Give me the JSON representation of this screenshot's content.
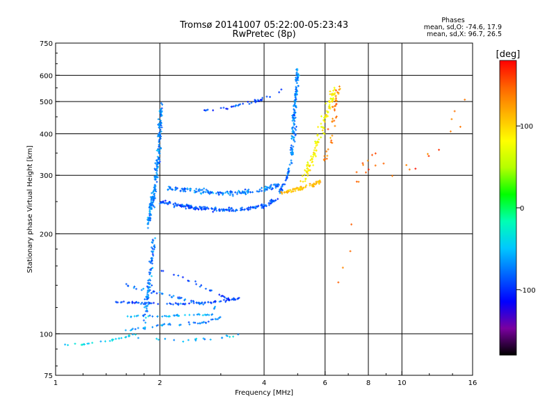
{
  "chart_data": {
    "type": "scatter",
    "title": "Tromsø 20141007 05:22:00-05:23:43",
    "subtitle": "RwPretec (8p)",
    "xlabel": "Frequency [MHz]",
    "ylabel": "Stationary phase Virtual Height [km]",
    "x_scale": "log",
    "y_scale": "log",
    "xlim": [
      1,
      16
    ],
    "ylim": [
      75,
      750
    ],
    "x_ticks": [
      {
        "value": 1,
        "label": "1"
      },
      {
        "value": 2,
        "label": "2"
      },
      {
        "value": 4,
        "label": "4"
      },
      {
        "value": 6,
        "label": "6"
      },
      {
        "value": 8,
        "label": "8"
      },
      {
        "value": 10,
        "label": "10"
      },
      {
        "value": 16,
        "label": "16"
      }
    ],
    "x_gridlines": [
      2,
      4,
      6,
      8,
      10
    ],
    "y_ticks": [
      {
        "value": 75,
        "label": "75"
      },
      {
        "value": 100,
        "label": "100"
      },
      {
        "value": 200,
        "label": "200"
      },
      {
        "value": 300,
        "label": "300"
      },
      {
        "value": 400,
        "label": "400"
      },
      {
        "value": 500,
        "label": "500"
      },
      {
        "value": 600,
        "label": "600"
      },
      {
        "value": 750,
        "label": "750"
      }
    ],
    "y_gridlines": [
      100,
      200,
      300,
      400,
      500,
      600
    ],
    "grid": true,
    "phase_info": {
      "heading": "Phases",
      "line_o": "mean, sd,O:  -74.6, 17.9",
      "line_x": "mean, sd,X:  96.7, 26.5"
    },
    "colorbar": {
      "label": "[deg]",
      "range": [
        -180,
        180
      ],
      "ticks": [
        {
          "value": 100,
          "label": "100"
        },
        {
          "value": 0,
          "label": "0"
        },
        {
          "value": -100,
          "label": "-100"
        }
      ],
      "colormap": [
        "#000000",
        "#7a00a0",
        "#0000ff",
        "#0064ff",
        "#00c8ff",
        "#00ffb4",
        "#00ff00",
        "#b4ff00",
        "#ffff00",
        "#ffb400",
        "#ff6400",
        "#ff0000"
      ]
    },
    "traces": [
      {
        "name": "",
        "kind": "curve",
        "x": [
          1.0,
          1.2,
          1.4,
          1.6,
          1.75
        ],
        "y": [
          92,
          93,
          95,
          98,
          100
        ],
        "n": 28,
        "phase": -45,
        "sx": 0.01,
        "sy": 0.01
      },
      {
        "name": "",
        "kind": "curve",
        "x": [
          1.6,
          1.8,
          2.0,
          2.3,
          2.7,
          3.0
        ],
        "y": [
          103,
          104,
          106,
          107,
          108,
          112
        ],
        "n": 45,
        "phase": -70,
        "sx": 0.015,
        "sy": 0.012
      },
      {
        "name": "",
        "kind": "curve",
        "x": [
          1.7,
          2.0,
          2.4,
          2.8,
          3.4
        ],
        "y": [
          98,
          96,
          96,
          97,
          99
        ],
        "n": 20,
        "phase": -55,
        "sx": 0.02,
        "sy": 0.015
      },
      {
        "name": "",
        "kind": "curve",
        "x": [
          1.5,
          1.7,
          2.0,
          2.4,
          2.8,
          3.1,
          3.4
        ],
        "y": [
          125,
          124,
          123,
          123,
          124,
          126,
          128
        ],
        "n": 80,
        "phase": -90,
        "sx": 0.01,
        "sy": 0.01
      },
      {
        "name": "",
        "kind": "curve",
        "x": [
          1.6,
          1.8,
          2.0,
          2.3,
          2.6,
          2.9
        ],
        "y": [
          140,
          136,
          132,
          128,
          124,
          120
        ],
        "n": 45,
        "phase": -80,
        "sx": 0.015,
        "sy": 0.015
      },
      {
        "name": "",
        "kind": "curve",
        "x": [
          1.6,
          1.85,
          2.1,
          2.5,
          2.9
        ],
        "y": [
          113,
          113,
          113,
          114,
          114
        ],
        "n": 40,
        "phase": -60,
        "sx": 0.015,
        "sy": 0.01
      },
      {
        "name": "",
        "kind": "curve",
        "x": [
          2.0,
          2.3,
          2.6,
          2.9,
          3.2
        ],
        "y": [
          155,
          148,
          140,
          133,
          126
        ],
        "n": 25,
        "phase": -95,
        "sx": 0.015,
        "sy": 0.015
      },
      {
        "name": "",
        "kind": "spike",
        "x": [
          1.8,
          1.84,
          1.88,
          1.92
        ],
        "y": [
          110,
          130,
          150,
          190
        ],
        "n": 90,
        "phase": -72,
        "sx": 0.02,
        "sy": 0.05
      },
      {
        "name": "",
        "kind": "spike",
        "x": [
          1.85,
          1.92,
          1.98,
          2.02
        ],
        "y": [
          215,
          260,
          340,
          490
        ],
        "n": 190,
        "phase": -70,
        "sx": 0.018,
        "sy": 0.06
      },
      {
        "name": "",
        "kind": "curve",
        "x": [
          2.0,
          2.3,
          2.6,
          3.0,
          3.5,
          4.0,
          4.4
        ],
        "y": [
          250,
          243,
          239,
          236,
          237,
          243,
          255
        ],
        "n": 200,
        "phase": -88,
        "sx": 0.012,
        "sy": 0.02
      },
      {
        "name": "",
        "kind": "curve",
        "x": [
          2.1,
          2.5,
          3.0,
          3.5,
          4.0,
          4.4
        ],
        "y": [
          275,
          270,
          265,
          266,
          272,
          280
        ],
        "n": 150,
        "phase": -75,
        "sx": 0.012,
        "sy": 0.025
      },
      {
        "name": "",
        "kind": "curve",
        "x": [
          2.7,
          3.2,
          3.6,
          4.0,
          4.5
        ],
        "y": [
          470,
          480,
          495,
          510,
          540
        ],
        "n": 40,
        "phase": -90,
        "sx": 0.012,
        "sy": 0.015
      },
      {
        "name": "",
        "kind": "curve",
        "x": [
          4.4,
          4.6,
          4.8,
          4.95
        ],
        "y": [
          265,
          285,
          330,
          420
        ],
        "n": 60,
        "phase": -80,
        "sx": 0.012,
        "sy": 0.03
      },
      {
        "name": "",
        "kind": "spike",
        "x": [
          4.8,
          4.88,
          4.95,
          5.0
        ],
        "y": [
          350,
          450,
          540,
          620
        ],
        "n": 110,
        "phase": -70,
        "sx": 0.015,
        "sy": 0.04
      },
      {
        "name": "",
        "kind": "curve",
        "x": [
          4.5,
          5.0,
          5.5,
          5.9
        ],
        "y": [
          265,
          272,
          280,
          290
        ],
        "n": 70,
        "phase": 110,
        "sx": 0.02,
        "sy": 0.02
      },
      {
        "name": "",
        "kind": "spike",
        "x": [
          5.2,
          5.6,
          6.0,
          6.4
        ],
        "y": [
          290,
          350,
          450,
          540
        ],
        "n": 120,
        "phase": 85,
        "sx": 0.03,
        "sy": 0.06
      },
      {
        "name": "",
        "kind": "spike",
        "x": [
          6.0,
          6.3,
          6.6
        ],
        "y": [
          330,
          420,
          560
        ],
        "n": 40,
        "phase": 135,
        "sx": 0.025,
        "sy": 0.05
      },
      {
        "name": "",
        "kind": "spike",
        "x": [
          6.2,
          6.6,
          7.6,
          8.0,
          11.0,
          15.5
        ],
        "y": [
          180,
          150,
          300,
          330,
          320,
          490
        ],
        "n": 28,
        "phase": 150,
        "sx": 0.06,
        "sy": 0.12
      }
    ]
  }
}
